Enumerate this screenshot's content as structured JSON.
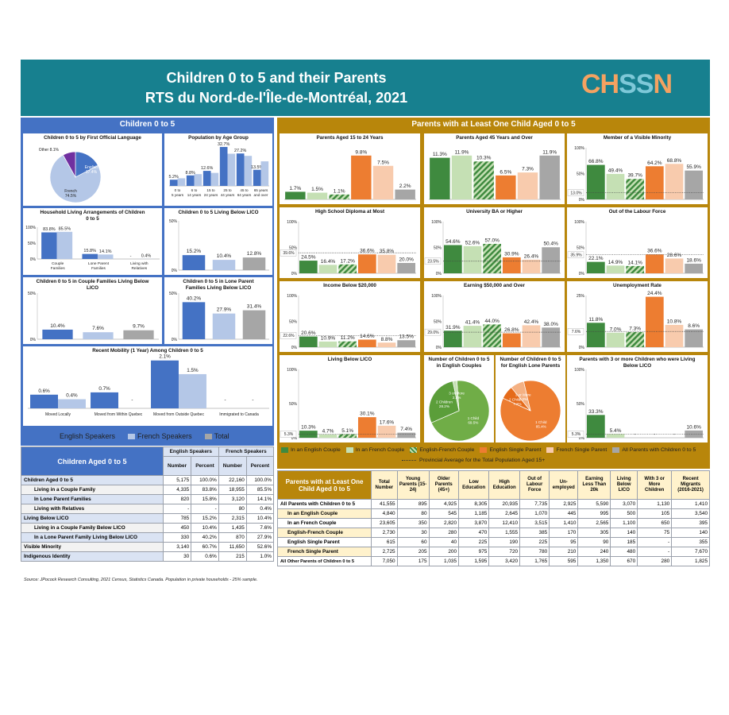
{
  "header": {
    "title1": "Children 0 to 5 and their Parents",
    "title2": "RTS du Nord-de-l'Île-de-Montréal, 2021",
    "logo": "CHSSN"
  },
  "bands": {
    "left": "Children 0 to 5",
    "right": "Parents with at Least One Child Aged 0 to 5"
  },
  "colors": {
    "eng": "#4472c4",
    "fr": "#b4c7e7",
    "tot": "#a6a6a6",
    "ec": "#3f8a3f",
    "fc": "#c5e0b4",
    "efc": "#70ad47",
    "esp": "#ed7d31",
    "fsp": "#f8cbad",
    "all": "#a6a6a6",
    "leftband": "#4472c4",
    "rightband": "#b8860b"
  },
  "legend_left": [
    "English Speakers",
    "French Speakers",
    "Total"
  ],
  "legend_right": [
    "In an English Couple",
    "In an French Couple",
    "English-French Couple",
    "English Single Parent",
    "French Single Parent",
    "All Parents with Children 0 to 5"
  ],
  "legend_prov": "Provincial Average for the Total Population Aged 15+",
  "chart_data": [
    {
      "type": "pie",
      "title": "Children 0 to 5 by First Official Language",
      "slices": [
        {
          "label": "English",
          "value": 17.4
        },
        {
          "label": "French",
          "value": 74.5
        },
        {
          "label": "Other",
          "value": 8.1
        }
      ]
    },
    {
      "type": "bar",
      "title": "Population by Age Group",
      "categories": [
        "0 to 5 years",
        "6 to 14 years",
        "15 to 24 years",
        "25 to 44 years",
        "45 to 64 years",
        "65 years and over"
      ],
      "series": [
        {
          "name": "English Speakers",
          "values": [
            5.2,
            8.8,
            12.6,
            32.7,
            27.2,
            13.5
          ]
        },
        {
          "name": "French Speakers",
          "values": [
            6.4,
            9.9,
            10.9,
            27.0,
            25.2,
            20.6
          ]
        }
      ]
    },
    {
      "type": "bar",
      "title": "Household Living Arrangements of Children 0 to 5",
      "categories": [
        "Couple Families",
        "Lone Parent Families",
        "Living with Relatives"
      ],
      "ylim": [
        0,
        100
      ],
      "yticks": [
        "0%",
        "50%",
        "100%"
      ],
      "series": [
        {
          "name": "English Speakers",
          "values": [
            83.8,
            15.8,
            null
          ],
          "labels": [
            "83.8%",
            "15.8%",
            "-"
          ]
        },
        {
          "name": "French Speakers",
          "values": [
            85.5,
            14.1,
            0.4
          ],
          "labels": [
            "85.5%",
            "14.1%",
            "0.4%"
          ]
        }
      ]
    },
    {
      "type": "bar",
      "title": "Children 0 to 5 Living Below LICO",
      "categories": [
        "English Speakers",
        "French Speakers",
        "Total"
      ],
      "ylim": [
        0,
        50
      ],
      "yticks": [
        "0%",
        "50%"
      ],
      "values": [
        15.2,
        10.4,
        12.8
      ]
    },
    {
      "type": "bar",
      "title": "Children 0 to 5 in Couple Families Living Below LICO",
      "categories": [
        "English Speakers",
        "French Speakers",
        "Total"
      ],
      "ylim": [
        0,
        50
      ],
      "yticks": [
        "0%",
        "50%"
      ],
      "values": [
        10.4,
        7.6,
        9.7
      ]
    },
    {
      "type": "bar",
      "title": "Children 0 to 5 in Lone Parent Families Living Below LICO",
      "categories": [
        "English Speakers",
        "French Speakers",
        "Total"
      ],
      "ylim": [
        0,
        50
      ],
      "yticks": [
        "0%",
        "50%"
      ],
      "values": [
        40.2,
        27.9,
        31.4
      ]
    },
    {
      "type": "bar",
      "title": "Recent Mobility (1 Year) Among Children 0 to 5",
      "categories": [
        "Moved Locally",
        "Moved from Within Quebec",
        "Moved from Outside Quebec",
        "Immigrated to Canada"
      ],
      "series": [
        {
          "name": "English Speakers",
          "values": [
            0.6,
            0.7,
            2.1,
            null
          ],
          "labels": [
            "0.6%",
            "0.7%",
            "2.1%",
            "-"
          ]
        },
        {
          "name": "French Speakers",
          "values": [
            0.4,
            null,
            1.5,
            null
          ],
          "labels": [
            "0.4%",
            "-",
            "1.5%",
            "-"
          ]
        }
      ]
    },
    {
      "type": "bar",
      "title": "Parents Aged 15 to 24 Years",
      "categories": [
        "In an English Couple",
        "In an French Couple",
        "English-French Couple",
        "English Single Parent",
        "French Single Parent",
        "All Parents with Children 0 to 5"
      ],
      "values": [
        1.7,
        1.5,
        1.1,
        9.8,
        7.5,
        2.2
      ]
    },
    {
      "type": "bar",
      "title": "Parents Aged 45 Years and Over",
      "categories": [
        "In an English Couple",
        "In an French Couple",
        "English-French Couple",
        "English Single Parent",
        "French Single Parent",
        "All Parents with Children 0 to 5"
      ],
      "values": [
        11.3,
        11.9,
        10.3,
        6.5,
        7.3,
        11.9
      ]
    },
    {
      "type": "bar",
      "title": "Member of a Visible Minority",
      "categories": [
        "In an English Couple",
        "In an French Couple",
        "English-French Couple",
        "English Single Parent",
        "French Single Parent",
        "All Parents with Children 0 to 5"
      ],
      "values": [
        66.8,
        49.4,
        39.7,
        64.2,
        68.8,
        55.9
      ],
      "ylim": [
        0,
        100
      ],
      "yticks": [
        "0%",
        "50%",
        "100%"
      ],
      "provincial": 13.0
    },
    {
      "type": "bar",
      "title": "High School Diploma at Most",
      "categories": [
        "In an English Couple",
        "In an French Couple",
        "English-French Couple",
        "English Single Parent",
        "French Single Parent",
        "All Parents with Children 0 to 5"
      ],
      "values": [
        24.5,
        16.4,
        17.2,
        36.6,
        35.8,
        20.0
      ],
      "ylim": [
        0,
        100
      ],
      "yticks": [
        "0%",
        "50%",
        "100%"
      ],
      "provincial": 39.6
    },
    {
      "type": "bar",
      "title": "University BA or Higher",
      "categories": [
        "In an English Couple",
        "In an French Couple",
        "English-French Couple",
        "English Single Parent",
        "French Single Parent",
        "All Parents with Children 0 to 5"
      ],
      "values": [
        54.6,
        52.6,
        57.0,
        30.9,
        26.4,
        50.4
      ],
      "ylim": [
        0,
        100
      ],
      "yticks": [
        "0%",
        "50%",
        "100%"
      ],
      "provincial": 23.5
    },
    {
      "type": "bar",
      "title": "Out of the Labour Force",
      "categories": [
        "In an English Couple",
        "In an French Couple",
        "English-French Couple",
        "English Single Parent",
        "French Single Parent",
        "All Parents with Children 0 to 5"
      ],
      "values": [
        22.1,
        14.9,
        14.1,
        36.6,
        28.6,
        18.6
      ],
      "ylim": [
        0,
        100
      ],
      "yticks": [
        "0%",
        "50%",
        "100%"
      ],
      "provincial": 35.9
    },
    {
      "type": "bar",
      "title": "Income Below $20,000",
      "categories": [
        "In an English Couple",
        "In an French Couple",
        "English-French Couple",
        "English Single Parent",
        "French Single Parent",
        "All Parents with Children 0 to 5"
      ],
      "values": [
        20.6,
        10.9,
        11.2,
        14.6,
        8.8,
        13.5
      ],
      "ylim": [
        0,
        100
      ],
      "yticks": [
        "0%",
        "50%",
        "100%"
      ],
      "provincial": 22.6
    },
    {
      "type": "bar",
      "title": "Earning $50,000 and Over",
      "categories": [
        "In an English Couple",
        "In an French Couple",
        "English-French Couple",
        "English Single Parent",
        "French Single Parent",
        "All Parents with Children 0 to 5"
      ],
      "values": [
        31.9,
        41.4,
        44.0,
        26.8,
        42.4,
        38.0
      ],
      "ylim": [
        0,
        100
      ],
      "yticks": [
        "0%",
        "50%",
        "100%"
      ],
      "provincial": 29.0
    },
    {
      "type": "bar",
      "title": "Unemployment Rate",
      "categories": [
        "In an English Couple",
        "In an French Couple",
        "English-French Couple",
        "English Single Parent",
        "French Single Parent",
        "All Parents with Children 0 to 5"
      ],
      "values": [
        11.8,
        7.0,
        7.3,
        24.4,
        10.8,
        8.6
      ],
      "ylim": [
        0,
        25
      ],
      "yticks": [
        "0%",
        "25%"
      ],
      "provincial": 7.6
    },
    {
      "type": "bar",
      "title": "Living Below LICO",
      "categories": [
        "In an English Couple",
        "In an French Couple",
        "English-French Couple",
        "English Single Parent",
        "French Single Parent",
        "All Parents with Children 0 to 5"
      ],
      "values": [
        10.3,
        4.7,
        5.1,
        30.1,
        17.6,
        7.4
      ],
      "ylim": [
        0,
        100
      ],
      "yticks": [
        "0%",
        "50%",
        "100%"
      ],
      "provincial": 5.3
    },
    {
      "type": "pie",
      "title": "Number of Children 0 to 5 in English Couples",
      "slices": [
        {
          "label": "1 Child",
          "value": 69.5
        },
        {
          "label": "2 Children",
          "value": 28.2
        },
        {
          "label": "3 or More",
          "value": 2.2
        }
      ]
    },
    {
      "type": "pie",
      "title": "Number of Children 0 to 5 for English Lone Parents",
      "slices": [
        {
          "label": "1 Child",
          "value": 85.4
        },
        {
          "label": "2 Children",
          "value": 7.2
        },
        {
          "label": "3 or More",
          "value": 7.3
        }
      ]
    },
    {
      "type": "bar",
      "title": "Parents with 3 or more Children who were Living Below LICO",
      "categories": [
        "In an English Couple",
        "In an French Couple",
        "English-French Couple",
        "English Single Parent",
        "French Single Parent",
        "All Parents with Children 0 to 5"
      ],
      "values": [
        33.3,
        5.4,
        null,
        null,
        null,
        10.6
      ],
      "labels": [
        "33.3%",
        "5.4%",
        "-",
        "-",
        "-",
        "10.6%"
      ],
      "ylim": [
        0,
        100
      ],
      "yticks": [
        "0%",
        "50%",
        "100%"
      ],
      "provincial": 5.3
    }
  ],
  "left_table": {
    "title": "Children Aged 0 to 5",
    "groups": [
      "English Speakers",
      "French Speakers"
    ],
    "cols": [
      "Number",
      "Percent",
      "Number",
      "Percent"
    ],
    "rows": [
      {
        "label": "Children Aged 0 to 5",
        "indent": 0,
        "cells": [
          "5,175",
          "100.0%",
          "22,160",
          "100.0%"
        ]
      },
      {
        "label": "Living in a Couple Family",
        "indent": 1,
        "cells": [
          "4,335",
          "83.8%",
          "18,955",
          "85.5%"
        ]
      },
      {
        "label": "In Lone Parent Families",
        "indent": 1,
        "cells": [
          "820",
          "15.8%",
          "3,120",
          "14.1%"
        ]
      },
      {
        "label": "Living with Relatives",
        "indent": 1,
        "cells": [
          "-",
          "-",
          "80",
          "0.4%"
        ]
      },
      {
        "label": "Living Below LICO",
        "indent": 0,
        "cells": [
          "785",
          "15.2%",
          "2,315",
          "10.4%"
        ]
      },
      {
        "label": "Living in a Couple Family Below LICO",
        "indent": 1,
        "cells": [
          "450",
          "10.4%",
          "1,435",
          "7.6%"
        ]
      },
      {
        "label": "In a Lone Parent Family Living Below LICO",
        "indent": 1,
        "cells": [
          "330",
          "40.2%",
          "870",
          "27.9%"
        ]
      },
      {
        "label": "Visible Minority",
        "indent": 0,
        "cells": [
          "3,140",
          "60.7%",
          "11,650",
          "52.6%"
        ]
      },
      {
        "label": "Indigenous Identity",
        "indent": 0,
        "cells": [
          "30",
          "0.6%",
          "215",
          "1.0%"
        ]
      }
    ]
  },
  "right_table": {
    "title": "Parents with at Least One Child Aged 0 to 5",
    "cols": [
      "Total Number",
      "Young Parents (15-24)",
      "Older Parents (45+)",
      "Low Education",
      "High Education",
      "Out of Labour Force",
      "Un-employed",
      "Earning Less Than 20k",
      "Living Below LICO",
      "With 3 or More Children",
      "Recent Migrants (2016-2021)"
    ],
    "rows": [
      {
        "label": "All Parents with Children 0 to 5",
        "cells": [
          "41,555",
          "895",
          "4,925",
          "8,305",
          "20,935",
          "7,735",
          "2,925",
          "5,590",
          "3,070",
          "1,130",
          "1,410"
        ]
      },
      {
        "label": "In an English Couple",
        "cells": [
          "4,840",
          "80",
          "545",
          "1,185",
          "2,645",
          "1,070",
          "445",
          "995",
          "500",
          "105",
          "3,540"
        ]
      },
      {
        "label": "In an French Couple",
        "cells": [
          "23,605",
          "350",
          "2,820",
          "3,870",
          "12,410",
          "3,515",
          "1,410",
          "2,565",
          "1,100",
          "650",
          "395"
        ]
      },
      {
        "label": "English-French Couple",
        "cells": [
          "2,730",
          "30",
          "280",
          "470",
          "1,555",
          "385",
          "170",
          "305",
          "140",
          "75",
          "140"
        ]
      },
      {
        "label": "English Single Parent",
        "cells": [
          "615",
          "60",
          "40",
          "225",
          "190",
          "225",
          "95",
          "90",
          "185",
          "-",
          "355"
        ]
      },
      {
        "label": "French Single Parent",
        "cells": [
          "2,725",
          "205",
          "200",
          "975",
          "720",
          "780",
          "210",
          "240",
          "480",
          "-",
          "7,670"
        ]
      },
      {
        "label": "All Other Parents of Children 0 to 5",
        "cells": [
          "7,050",
          "175",
          "1,035",
          "1,595",
          "3,420",
          "1,765",
          "595",
          "1,350",
          "670",
          "280",
          "1,825"
        ]
      }
    ]
  },
  "source": "Source: JPocock Research Consulting, 2021 Census, Statistics Canada. Population in private households - 25% sample."
}
